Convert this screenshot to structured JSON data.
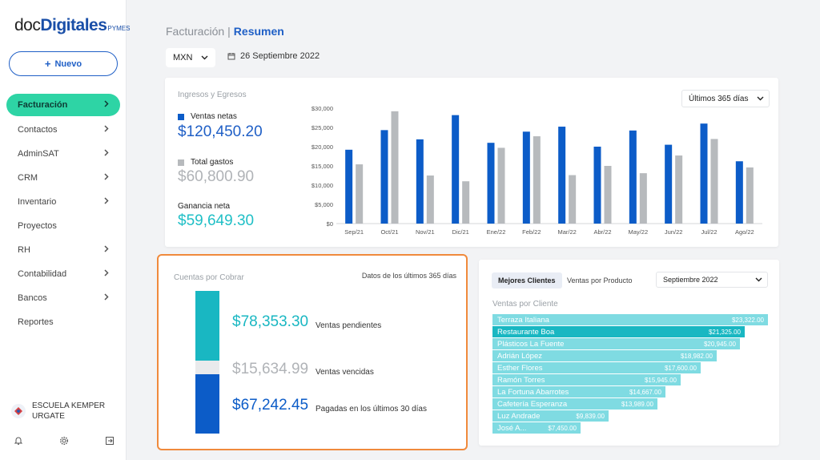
{
  "logo": {
    "part1": "doc",
    "part2": "Digitales",
    "part3": "PYMES"
  },
  "sidebar": {
    "new_button": "Nuevo",
    "items": [
      {
        "label": "Facturación",
        "chevron": true,
        "active": true
      },
      {
        "label": "Contactos",
        "chevron": true
      },
      {
        "label": "AdminSAT",
        "chevron": true
      },
      {
        "label": "CRM",
        "chevron": true
      },
      {
        "label": "Inventario",
        "chevron": true
      },
      {
        "label": "Proyectos",
        "chevron": false
      },
      {
        "label": "RH",
        "chevron": true
      },
      {
        "label": "Contabilidad",
        "chevron": true
      },
      {
        "label": "Bancos",
        "chevron": true
      },
      {
        "label": "Reportes",
        "chevron": false
      }
    ],
    "user_name": "ESCUELA KEMPER URGATE",
    "bottom_icons": [
      "bell-icon",
      "gear-icon",
      "logout-icon"
    ]
  },
  "header": {
    "breadcrumb_1": "Facturación",
    "separator": "|",
    "breadcrumb_2": "Resumen",
    "currency": "MXN",
    "date": "26 Septiembre 2022"
  },
  "ingresos": {
    "title": "Ingresos y Egresos",
    "range": "Últimos 365 días",
    "ventas_label": "Ventas netas",
    "ventas_value": "$120,450.20",
    "gastos_label": "Total gastos",
    "gastos_value": "$60,800.90",
    "ganancia_label": "Ganancia neta",
    "ganancia_value": "$59,649.30"
  },
  "colors": {
    "accent": "#1f5fc6",
    "ventas": "#0c5cc8",
    "gastos": "#b7babd",
    "teal": "#19b7c2",
    "green": "#2ed4a5",
    "light_teal": "#7fdbe2"
  },
  "chart_data": {
    "type": "bar",
    "categories": [
      "Sep/21",
      "Oct/21",
      "Nov/21",
      "Dic/21",
      "Ene/22",
      "Feb/22",
      "Mar/22",
      "Abr/22",
      "May/22",
      "Jun/22",
      "Jul/22",
      "Ago/22"
    ],
    "series": [
      {
        "name": "Ventas netas",
        "values": [
          19200,
          24300,
          21900,
          28200,
          21000,
          23900,
          25200,
          20000,
          24200,
          20500,
          26000,
          16200
        ]
      },
      {
        "name": "Total gastos",
        "values": [
          15400,
          29200,
          12500,
          11000,
          19700,
          22700,
          12600,
          15000,
          13100,
          17700,
          22000,
          14600
        ]
      }
    ],
    "ylim": [
      0,
      30000
    ],
    "yticks": [
      "$0",
      "$5,000",
      "$10,000",
      "$15,000",
      "$20,000",
      "$25,000",
      "$30,000"
    ],
    "grid": false,
    "legend": "left"
  },
  "cuentas": {
    "title": "Cuentas por Cobrar",
    "note": "Datos de los últimos 365 días",
    "segments": [
      {
        "value": "$78,353.30",
        "label": "Ventas pendientes",
        "amount": 78353.3
      },
      {
        "value": "$15,634.99",
        "label": "Ventas vencidas",
        "amount": 15634.99
      },
      {
        "value": "$67,242.45",
        "label": "Pagadas en los últimos 30 días",
        "amount": 67242.45
      }
    ]
  },
  "clientes": {
    "tab_active": "Mejores Clientes",
    "tab_inactive": "Ventas por Producto",
    "month": "Septiembre 2022",
    "subtitle": "Ventas por Cliente",
    "items": [
      {
        "name": "Terraza Italiana",
        "value": "$23,322.00",
        "amount": 23322
      },
      {
        "name": "Restaurante Boa",
        "value": "$21,325.00",
        "amount": 21325,
        "highlight": true
      },
      {
        "name": "Plásticos La Fuente",
        "value": "$20,945.00",
        "amount": 20945
      },
      {
        "name": "Adrián López",
        "value": "$18,982.00",
        "amount": 18982
      },
      {
        "name": "Esther Flores",
        "value": "$17,600.00",
        "amount": 17600
      },
      {
        "name": "Ramón Torres",
        "value": "$15,945.00",
        "amount": 15945
      },
      {
        "name": "La Fortuna Abarrotes",
        "value": "$14,667.00",
        "amount": 14667
      },
      {
        "name": "Cafetería Esperanza",
        "value": "$13,989.00",
        "amount": 13989
      },
      {
        "name": "Luz Andrade",
        "value": "$9,839.00",
        "amount": 9839
      },
      {
        "name": "José A...",
        "value": "$7,450.00",
        "amount": 7450
      }
    ]
  }
}
